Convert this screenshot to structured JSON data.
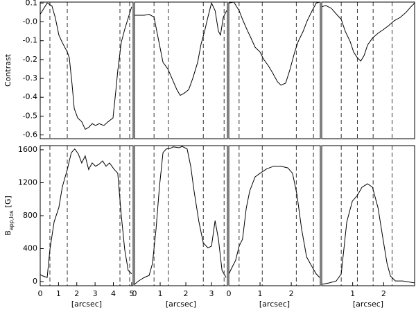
{
  "chart_data": [
    {
      "type": "line",
      "ylabel": "Contrast",
      "color": "#000000",
      "x": [
        0,
        0.38,
        0.64,
        0.83,
        1.02,
        1.21,
        1.48,
        1.59,
        1.74,
        1.86,
        2.05,
        2.27,
        2.46,
        2.65,
        2.84,
        3.03,
        3.22,
        3.48,
        3.71,
        3.98,
        4.13,
        4.24,
        4.43,
        4.62,
        4.81,
        5.0
      ],
      "values": [
        0.04,
        0.1,
        0.085,
        0.02,
        -0.07,
        -0.11,
        -0.16,
        -0.19,
        -0.33,
        -0.46,
        -0.51,
        -0.53,
        -0.57,
        -0.56,
        -0.54,
        -0.55,
        -0.54,
        -0.55,
        -0.53,
        -0.51,
        -0.37,
        -0.26,
        -0.11,
        -0.04,
        0.02,
        0.08
      ],
      "xlim": [
        0,
        5.08
      ],
      "ylim": [
        -0.62,
        0.105
      ],
      "yticks": [
        0.1,
        {
          "value": 0,
          "label": "-0.0"
        },
        -0.1,
        -0.2,
        -0.3,
        -0.4,
        -0.5,
        -0.6
      ],
      "vlines": [
        0.53,
        1.48,
        4.36,
        4.89
      ]
    },
    {
      "type": "line",
      "color": "#000000",
      "x": [
        0,
        0.16,
        0.38,
        0.57,
        0.76,
        0.92,
        1.11,
        1.3,
        1.46,
        1.65,
        1.78,
        1.92,
        2.11,
        2.27,
        2.46,
        2.59,
        2.73,
        2.86,
        3.0,
        3.14,
        3.27,
        3.35,
        3.46,
        3.59
      ],
      "values": [
        0.035,
        0.035,
        0.035,
        0.04,
        0.025,
        -0.085,
        -0.215,
        -0.25,
        -0.3,
        -0.36,
        -0.39,
        -0.38,
        -0.36,
        -0.3,
        -0.215,
        -0.12,
        -0.05,
        0.025,
        0.1,
        0.06,
        -0.05,
        -0.07,
        0.025,
        0.06
      ],
      "xlim": [
        0,
        3.62
      ],
      "ylim": [
        -0.62,
        0.105
      ],
      "vlines": [
        0.76,
        1.32,
        2.68,
        3.49
      ]
    },
    {
      "type": "line",
      "color": "#000000",
      "x": [
        0,
        0.16,
        0.33,
        0.44,
        0.58,
        0.71,
        0.84,
        1.0,
        1.11,
        1.27,
        1.4,
        1.56,
        1.67,
        1.82,
        1.96,
        2.11,
        2.22,
        2.38,
        2.51,
        2.67,
        2.8,
        2.91
      ],
      "values": [
        0.1,
        0.105,
        0.06,
        0.013,
        -0.04,
        -0.086,
        -0.134,
        -0.16,
        -0.197,
        -0.234,
        -0.27,
        -0.318,
        -0.336,
        -0.325,
        -0.252,
        -0.16,
        -0.105,
        -0.05,
        0.006,
        0.06,
        0.1,
        0.105
      ],
      "xlim": [
        0,
        2.93
      ],
      "ylim": [
        -0.62,
        0.105
      ],
      "vlines": [
        0.33,
        1.07,
        2.16,
        2.71
      ]
    },
    {
      "type": "line",
      "color": "#000000",
      "x": [
        0,
        0.13,
        0.31,
        0.47,
        0.63,
        0.76,
        0.92,
        1.03,
        1.15,
        1.26,
        1.37,
        1.48,
        1.64,
        1.82,
        2.0,
        2.16,
        2.34,
        2.54,
        2.72,
        2.88,
        3.0
      ],
      "values": [
        0.08,
        0.087,
        0.072,
        0.042,
        0.013,
        -0.05,
        -0.105,
        -0.16,
        -0.19,
        -0.208,
        -0.178,
        -0.123,
        -0.086,
        -0.06,
        -0.04,
        -0.02,
        0.006,
        0.024,
        0.05,
        0.08,
        0.1
      ],
      "xlim": [
        0,
        3.0
      ],
      "ylim": [
        -0.62,
        0.105
      ],
      "vlines": [
        0.63,
        1.15,
        1.66,
        2.27
      ]
    },
    {
      "type": "line",
      "ylabel": "B",
      "ylabel_sub": "app,los",
      "ylabel_unit": "[G]",
      "xlabel": "[arcsec]",
      "color": "#000000",
      "x": [
        0,
        0.15,
        0.38,
        0.53,
        0.76,
        1.02,
        1.21,
        1.48,
        1.7,
        1.89,
        2.08,
        2.27,
        2.46,
        2.65,
        2.84,
        3.03,
        3.22,
        3.41,
        3.6,
        3.79,
        4.05,
        4.24,
        4.43,
        4.62,
        4.81,
        5.0
      ],
      "values": [
        85,
        68,
        50,
        390,
        725,
        900,
        1150,
        1360,
        1565,
        1610,
        1550,
        1440,
        1525,
        1360,
        1440,
        1400,
        1425,
        1465,
        1400,
        1440,
        1360,
        1315,
        810,
        390,
        135,
        95
      ],
      "xlim": [
        0,
        5.08
      ],
      "ylim": [
        -50,
        1650
      ],
      "xticks": [
        0,
        1,
        2,
        3,
        4,
        5
      ],
      "yticks": [
        0,
        400,
        800,
        1200,
        1600
      ],
      "vlines": [
        0.53,
        1.48,
        4.36,
        4.89
      ]
    },
    {
      "type": "line",
      "xlabel": "[arcsec]",
      "color": "#000000",
      "x": [
        0,
        0.16,
        0.38,
        0.57,
        0.7,
        0.84,
        0.97,
        1.11,
        1.24,
        1.38,
        1.51,
        1.73,
        1.86,
        2.05,
        2.19,
        2.32,
        2.51,
        2.68,
        2.86,
        3.0,
        3.14,
        3.27,
        3.41,
        3.57
      ],
      "values": [
        -33,
        8,
        50,
        75,
        220,
        640,
        1145,
        1565,
        1610,
        1615,
        1635,
        1625,
        1640,
        1610,
        1400,
        1100,
        725,
        470,
        410,
        430,
        740,
        515,
        135,
        50
      ],
      "xlim": [
        0,
        3.62
      ],
      "ylim": [
        -50,
        1650
      ],
      "xticks": [
        0,
        1,
        2,
        3
      ],
      "vlines": [
        0.76,
        1.32,
        2.68,
        3.49
      ]
    },
    {
      "type": "line",
      "xlabel": "[arcsec]",
      "color": "#000000",
      "x": [
        0,
        0.11,
        0.22,
        0.33,
        0.44,
        0.56,
        0.67,
        0.84,
        1.0,
        1.22,
        1.44,
        1.67,
        1.89,
        2.04,
        2.18,
        2.33,
        2.49,
        2.67,
        2.8,
        2.91
      ],
      "values": [
        93,
        177,
        260,
        430,
        515,
        893,
        1100,
        1270,
        1315,
        1370,
        1400,
        1400,
        1380,
        1315,
        1060,
        640,
        300,
        177,
        93,
        50
      ],
      "xlim": [
        0,
        2.93
      ],
      "ylim": [
        -50,
        1650
      ],
      "xticks": [
        0,
        1,
        2
      ],
      "vlines": [
        0.33,
        1.07,
        2.16,
        2.71
      ]
    },
    {
      "type": "line",
      "xlabel": "[arcsec]",
      "color": "#000000",
      "x": [
        0,
        0.25,
        0.47,
        0.63,
        0.81,
        0.99,
        1.15,
        1.3,
        1.48,
        1.64,
        1.82,
        1.98,
        2.11,
        2.22,
        2.38,
        2.61,
        3.0
      ],
      "values": [
        -33,
        -15,
        8,
        93,
        725,
        977,
        1045,
        1145,
        1187,
        1145,
        893,
        515,
        220,
        68,
        8,
        8,
        -15
      ],
      "xlim": [
        0,
        3.0
      ],
      "ylim": [
        -50,
        1650
      ],
      "xticks": [
        1,
        2
      ],
      "vlines": [
        0.63,
        1.15,
        1.66,
        2.27
      ]
    }
  ]
}
